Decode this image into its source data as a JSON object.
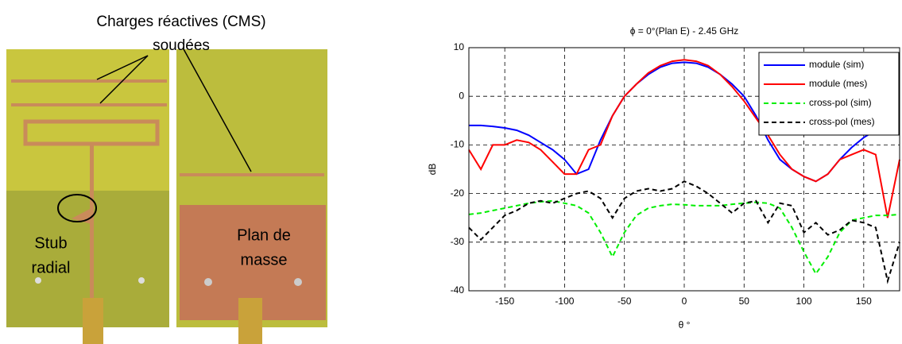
{
  "annotations": {
    "cms_line1": "Charges réactives (CMS)",
    "cms_line2": "soudées",
    "stub_line1": "Stub",
    "stub_line2": "radial",
    "plane_line1": "Plan de",
    "plane_line2": "masse"
  },
  "chart_data": {
    "type": "line",
    "title": "ϕ = 0°(Plan E)  - 2.45 GHz",
    "xlabel": "θ °",
    "ylabel": "dB",
    "x": [
      -180,
      -170,
      -160,
      -150,
      -140,
      -130,
      -120,
      -110,
      -100,
      -90,
      -80,
      -70,
      -60,
      -50,
      -40,
      -30,
      -20,
      -10,
      0,
      10,
      20,
      30,
      40,
      50,
      60,
      70,
      80,
      90,
      100,
      110,
      120,
      130,
      140,
      150,
      160,
      170,
      180
    ],
    "series": [
      {
        "name": "module (sim)",
        "color": "#0000ff",
        "dash": false,
        "values": [
          -6,
          -6,
          -6.2,
          -6.5,
          -7,
          -8,
          -9.5,
          -11,
          -13,
          -16,
          -15,
          -9,
          -4,
          0,
          2.5,
          4.5,
          6,
          6.8,
          7,
          6.8,
          6,
          4.5,
          2.5,
          0,
          -4,
          -9,
          -13,
          -15,
          -16.5,
          -17.5,
          -16,
          -13,
          -10.5,
          -8.5,
          -7,
          -6,
          -6
        ]
      },
      {
        "name": "module (mes)",
        "color": "#ff0000",
        "dash": false,
        "values": [
          -11,
          -15,
          -10,
          -10,
          -9,
          -9.5,
          -11,
          -13.5,
          -16,
          -16,
          -11,
          -10,
          -4,
          0,
          2.5,
          4.8,
          6.3,
          7.2,
          7.5,
          7.2,
          6.3,
          4.5,
          2,
          -1,
          -4.5,
          -8,
          -12,
          -15,
          -16.5,
          -17.5,
          -16,
          -13,
          -12,
          -11,
          -12,
          -25,
          -13
        ]
      },
      {
        "name": "cross-pol (sim)",
        "color": "#00ee00",
        "dash": true,
        "values": [
          -24.3,
          -24,
          -23.5,
          -23,
          -22.5,
          -22,
          -21.7,
          -21.5,
          -22,
          -22.5,
          -24,
          -28,
          -33,
          -28,
          -24.5,
          -23,
          -22.5,
          -22.2,
          -22.3,
          -22.5,
          -22.5,
          -22.5,
          -22.2,
          -22,
          -21.8,
          -22,
          -23,
          -27,
          -32,
          -36.5,
          -33,
          -28,
          -25.5,
          -25,
          -24.5,
          -24.5,
          -24.3
        ]
      },
      {
        "name": "cross-pol (mes)",
        "color": "#000000",
        "dash": true,
        "values": [
          -27,
          -29.5,
          -27,
          -24.5,
          -23.5,
          -22,
          -21.5,
          -22,
          -21,
          -20,
          -19.5,
          -21,
          -25,
          -21,
          -19.5,
          -19,
          -19.5,
          -19,
          -17.5,
          -18.5,
          -20,
          -22,
          -24,
          -22,
          -21.5,
          -26,
          -22,
          -22.5,
          -28,
          -26,
          -28.5,
          -27.5,
          -25.5,
          -26,
          -27,
          -38,
          -30
        ]
      }
    ],
    "xlim": [
      -180,
      180
    ],
    "ylim": [
      -40,
      10
    ],
    "xticks": [
      -150,
      -100,
      -50,
      0,
      50,
      100,
      150
    ],
    "yticks": [
      -40,
      -30,
      -20,
      -10,
      0,
      10
    ],
    "grid": true,
    "legend": "upper right"
  }
}
